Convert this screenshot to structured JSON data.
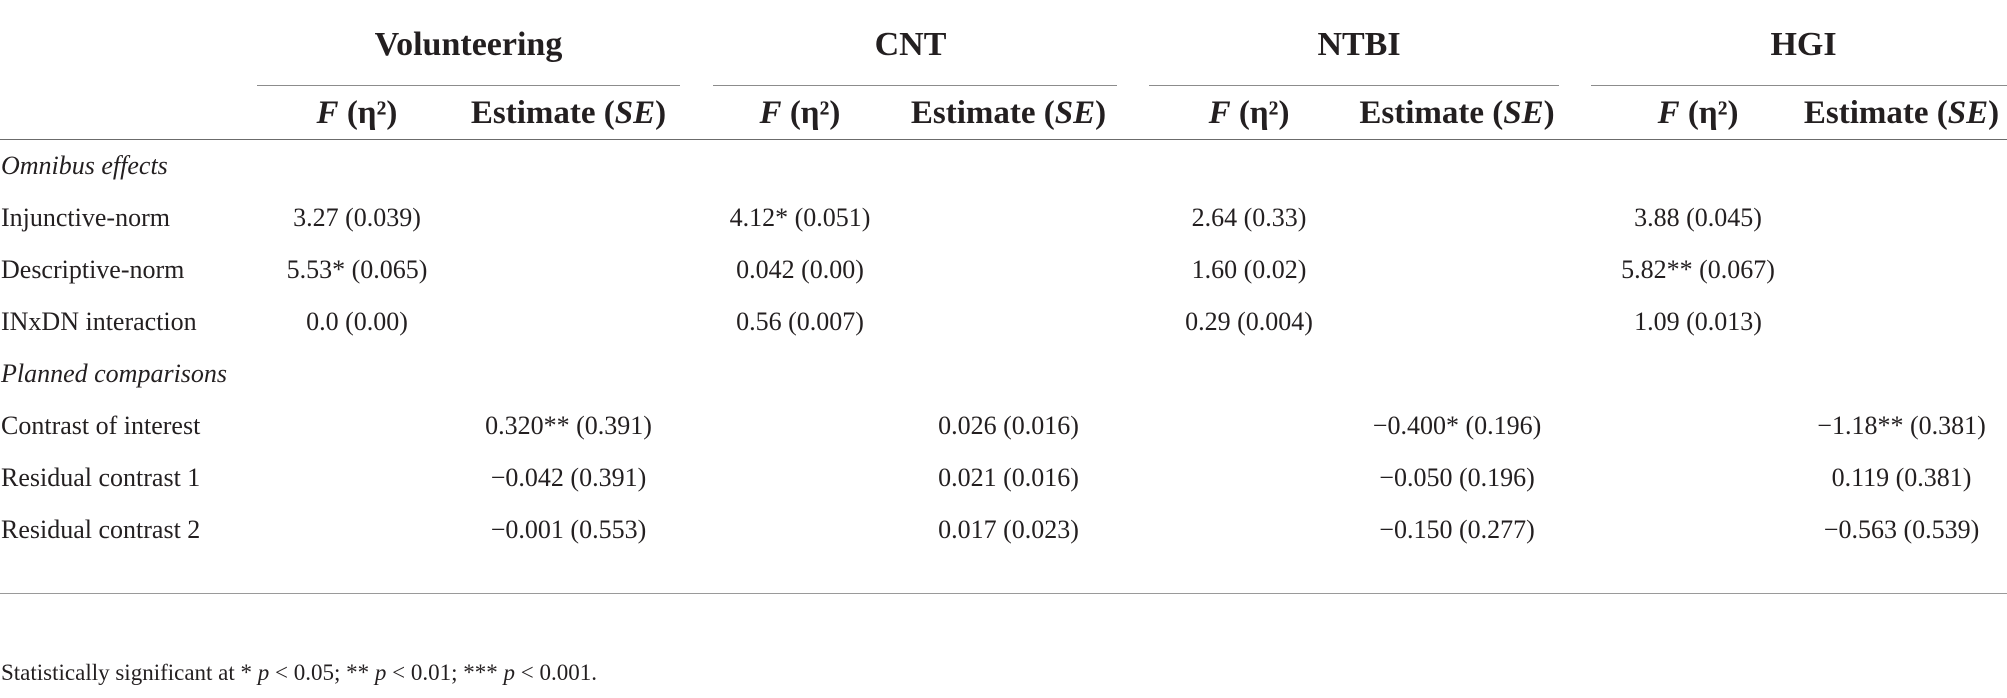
{
  "table": {
    "groups": [
      "Volunteering",
      "CNT",
      "NTBI",
      "HGI"
    ],
    "subheaders": {
      "f_italic": "F",
      "f_rest": " (η²)",
      "est_lead": "Estimate (",
      "est_italic": "SE",
      "est_trail": ")"
    },
    "sections": {
      "omnibus": "Omnibus effects",
      "planned": "Planned comparisons"
    },
    "rows": [
      {
        "label": "Injunctive-norm",
        "f": [
          "3.27 (0.039)",
          "4.12* (0.051)",
          "2.64 (0.33)",
          "3.88 (0.045)"
        ],
        "est": [
          "",
          "",
          "",
          ""
        ]
      },
      {
        "label": "Descriptive-norm",
        "f": [
          "5.53* (0.065)",
          "0.042 (0.00)",
          "1.60 (0.02)",
          "5.82** (0.067)"
        ],
        "est": [
          "",
          "",
          "",
          ""
        ]
      },
      {
        "label": "INxDN interaction",
        "f": [
          "0.0 (0.00)",
          "0.56 (0.007)",
          "0.29 (0.004)",
          "1.09 (0.013)"
        ],
        "est": [
          "",
          "",
          "",
          ""
        ]
      },
      {
        "label": "Contrast of interest",
        "f": [
          "",
          "",
          "",
          ""
        ],
        "est": [
          "0.320** (0.391)",
          "0.026 (0.016)",
          "−0.400* (0.196)",
          "−1.18** (0.381)"
        ]
      },
      {
        "label": "Residual contrast 1",
        "f": [
          "",
          "",
          "",
          ""
        ],
        "est": [
          "−0.042 (0.391)",
          "0.021 (0.016)",
          "−0.050 (0.196)",
          "0.119 (0.381)"
        ]
      },
      {
        "label": "Residual contrast 2",
        "f": [
          "",
          "",
          "",
          ""
        ],
        "est": [
          "−0.001 (0.553)",
          "0.017 (0.023)",
          "−0.150 (0.277)",
          "−0.563 (0.539)"
        ]
      }
    ]
  },
  "footnote": {
    "lead": "Statistically significant at * ",
    "p1": "p",
    "t1": " < 0.05; ** ",
    "p2": "p",
    "t2": " < 0.01; *** ",
    "p3": "p",
    "t3": " < 0.001."
  }
}
